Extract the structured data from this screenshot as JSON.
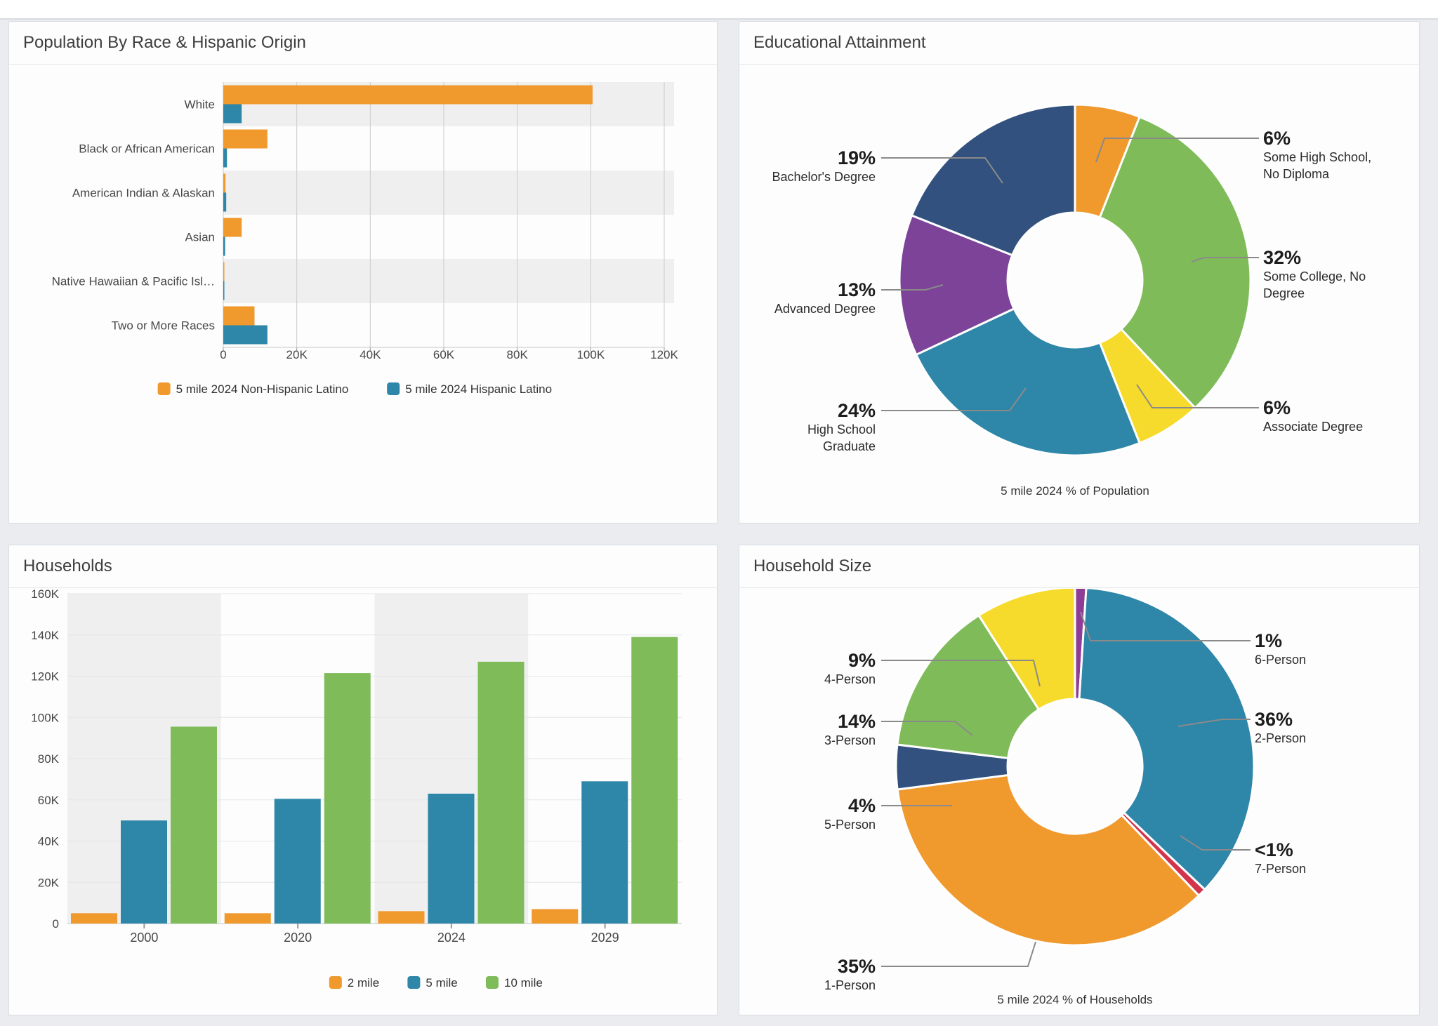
{
  "page": {
    "background": "#EAECEF",
    "panel_background": "#FDFDFD"
  },
  "colors": {
    "orange": "#F0992D",
    "teal": "#2E86A8",
    "green": "#7FBC59",
    "navy": "#32517E",
    "purple": "#7C4399",
    "purple_bright": "#8D3D96",
    "yellow": "#F6DB2C",
    "red": "#D3344B",
    "leader_line": "#8A8A8A",
    "zebra_band": "#EFEFEF",
    "gridline_dark": "#CBCBCB",
    "gridline_light": "#E3E5E8",
    "axis_line": "#C4C6C9",
    "tick_text": "#474747",
    "pct_text": "#1C1C1C",
    "label_text": "#2B2B2B"
  },
  "panels": {
    "race": {
      "title": "Population By Race & Hispanic Origin"
    },
    "education": {
      "title": "Educational Attainment",
      "caption": "5 mile 2024 % of Population"
    },
    "households": {
      "title": "Households"
    },
    "household_size": {
      "title": "Household Size",
      "caption": "5 mile 2024 % of Households"
    }
  },
  "chart_data": [
    {
      "id": "race",
      "type": "bar",
      "orientation": "horizontal",
      "title": "Population By Race & Hispanic Origin",
      "categories": [
        "White",
        "Black or African American",
        "American Indian & Alaskan",
        "Asian",
        "Native Hawaiian & Pacific Isl…",
        "Two or More Races"
      ],
      "series": [
        {
          "name": "5 mile 2024 Non-Hispanic Latino",
          "color": "#F0992D",
          "values": [
            100500,
            12000,
            600,
            5000,
            200,
            8500
          ]
        },
        {
          "name": "5 mile 2024 Hispanic Latino",
          "color": "#2E86A8",
          "values": [
            5000,
            1000,
            800,
            500,
            100,
            12000
          ]
        }
      ],
      "xlim": [
        0,
        120000
      ],
      "x_ticks": [
        "0",
        "20K",
        "40K",
        "60K",
        "80K",
        "100K",
        "120K"
      ],
      "grid": true,
      "legend_position": "bottom"
    },
    {
      "id": "education",
      "type": "pie",
      "subtype": "donut",
      "title": "Educational Attainment",
      "caption": "5 mile 2024 % of Population",
      "slices": [
        {
          "key": "shs",
          "pct_label": "6%",
          "value": 6,
          "label_lines": [
            "Some High School,",
            "No Diploma"
          ],
          "color": "#F0992D"
        },
        {
          "key": "college",
          "pct_label": "32%",
          "value": 32,
          "label_lines": [
            "Some College, No",
            "Degree"
          ],
          "color": "#7FBC59"
        },
        {
          "key": "assoc",
          "pct_label": "6%",
          "value": 6,
          "label_lines": [
            "Associate Degree"
          ],
          "color": "#F6DB2C"
        },
        {
          "key": "hsg",
          "pct_label": "24%",
          "value": 24,
          "label_lines": [
            "High School",
            "Graduate"
          ],
          "color": "#2E86A8"
        },
        {
          "key": "adv",
          "pct_label": "13%",
          "value": 13,
          "label_lines": [
            "Advanced Degree"
          ],
          "color": "#7C4399"
        },
        {
          "key": "bach",
          "pct_label": "19%",
          "value": 19,
          "label_lines": [
            "Bachelor's Degree"
          ],
          "color": "#32517E"
        }
      ],
      "legend_position": "none"
    },
    {
      "id": "households",
      "type": "bar",
      "orientation": "vertical",
      "title": "Households",
      "categories": [
        "2000",
        "2020",
        "2024",
        "2029"
      ],
      "series": [
        {
          "name": "2 mile",
          "color": "#F0992D",
          "values": [
            5000,
            5000,
            6000,
            7000
          ]
        },
        {
          "name": "5 mile",
          "color": "#2E86A8",
          "values": [
            50000,
            60500,
            63000,
            69000
          ]
        },
        {
          "name": "10 mile",
          "color": "#7FBC59",
          "values": [
            95500,
            121500,
            127000,
            139000
          ]
        }
      ],
      "ylim": [
        0,
        160000
      ],
      "y_ticks": [
        "0",
        "20K",
        "40K",
        "60K",
        "80K",
        "100K",
        "120K",
        "140K",
        "160K"
      ],
      "grid": true,
      "legend_position": "bottom"
    },
    {
      "id": "household_size",
      "type": "pie",
      "subtype": "donut",
      "title": "Household Size",
      "caption": "5 mile 2024 % of Households",
      "slices": [
        {
          "key": "p6",
          "pct_label": "1%",
          "value": 1,
          "label_lines": [
            "6-Person"
          ],
          "color": "#8D3D96"
        },
        {
          "key": "p2",
          "pct_label": "36%",
          "value": 36,
          "label_lines": [
            "2-Person"
          ],
          "color": "#2E86A8"
        },
        {
          "key": "p7",
          "pct_label": "<1%",
          "value": 0.75,
          "label_lines": [
            "7-Person"
          ],
          "color": "#D3344B"
        },
        {
          "key": "p1",
          "pct_label": "35%",
          "value": 35,
          "label_lines": [
            "1-Person"
          ],
          "color": "#F0992D"
        },
        {
          "key": "p5",
          "pct_label": "4%",
          "value": 4,
          "label_lines": [
            "5-Person"
          ],
          "color": "#32517E"
        },
        {
          "key": "p3",
          "pct_label": "14%",
          "value": 14,
          "label_lines": [
            "3-Person"
          ],
          "color": "#7FBC59"
        },
        {
          "key": "p4",
          "pct_label": "9%",
          "value": 9,
          "label_lines": [
            "4-Person"
          ],
          "color": "#F6DB2C"
        }
      ],
      "legend_position": "none"
    }
  ]
}
